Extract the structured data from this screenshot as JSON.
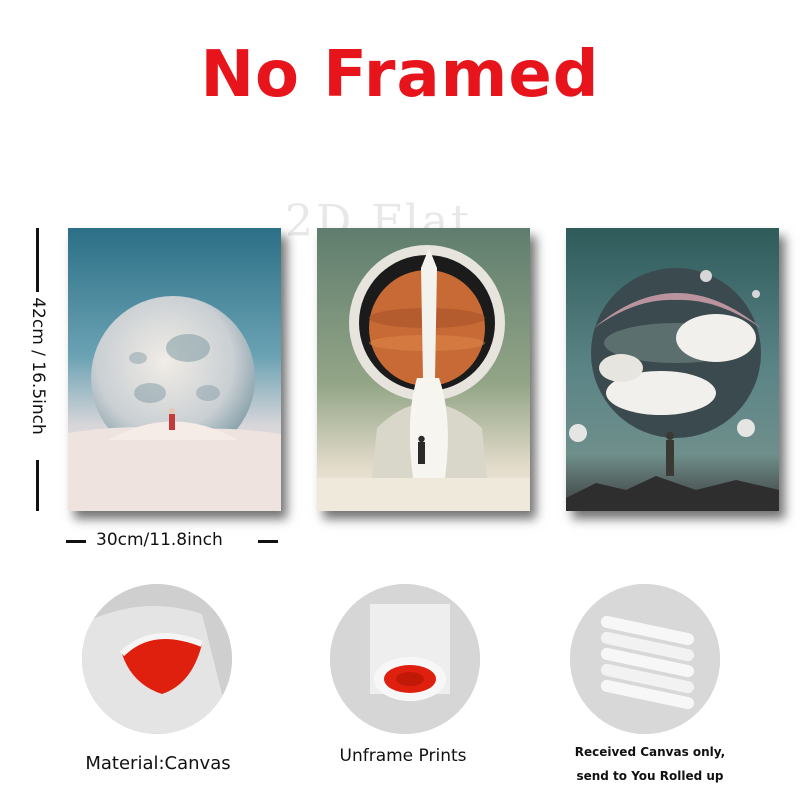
{
  "header": {
    "title": "No Framed"
  },
  "watermark": "2D Flat",
  "dimensions": {
    "height_label": "42cm / 16.5inch",
    "width_label": "30cm/11.8inch"
  },
  "prints": [
    {
      "name": "Moon astronaut print"
    },
    {
      "name": "Rocket helmet astronaut print"
    },
    {
      "name": "Cloud planet print"
    }
  ],
  "details": [
    {
      "caption": "Material:Canvas"
    },
    {
      "caption": "Unframe  Prints"
    },
    {
      "caption_line1": "Received Canvas only,",
      "caption_line2": "send to You Rolled up"
    }
  ],
  "colors": {
    "title": "#e8141c",
    "canvas_inner": "#e0200f"
  }
}
